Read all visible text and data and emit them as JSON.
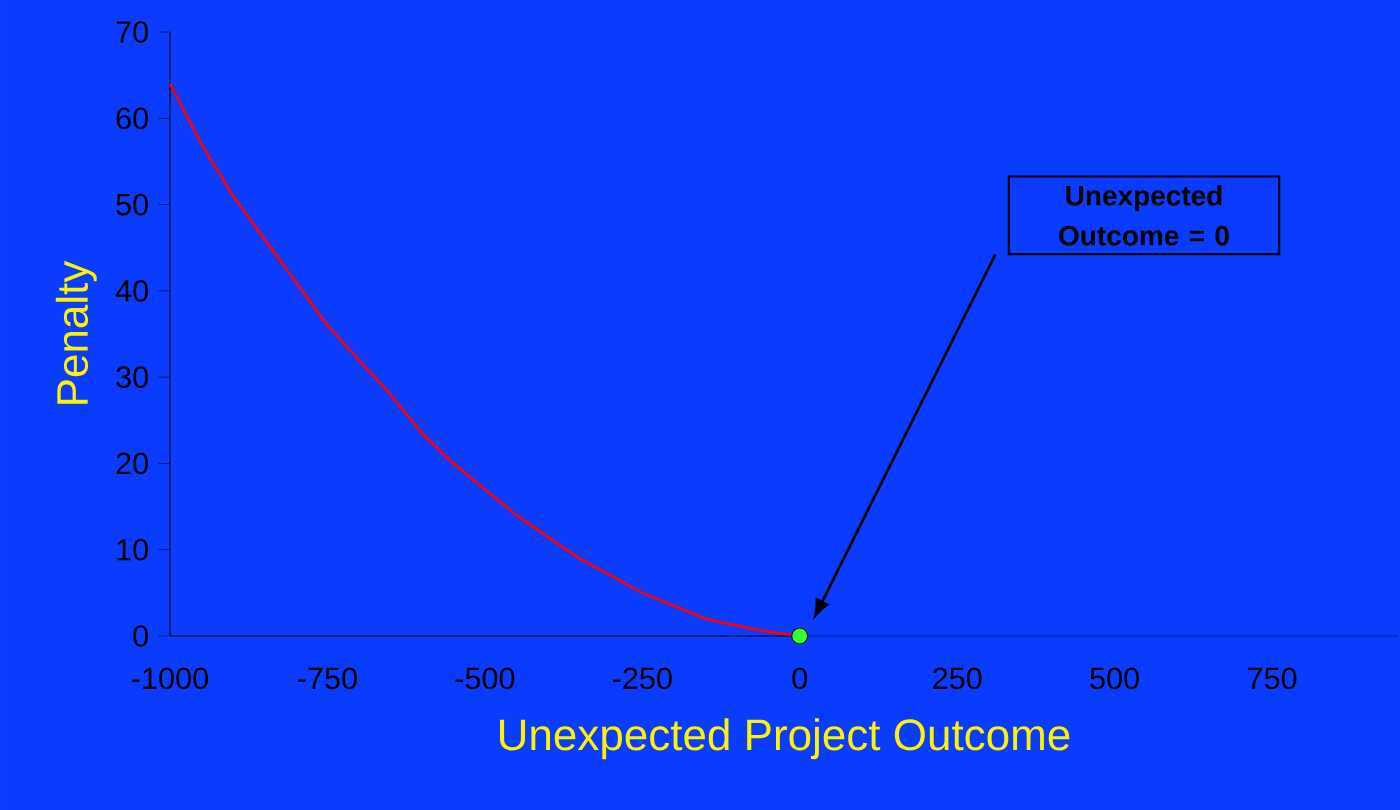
{
  "chart_data": {
    "type": "line",
    "xlabel": "Unexpected Project Outcome",
    "ylabel": "Penalty",
    "xlim": [
      -1000,
      950
    ],
    "ylim": [
      0,
      70
    ],
    "xticks": [
      -1000,
      -750,
      -500,
      -250,
      0,
      250,
      500,
      750
    ],
    "yticks": [
      0,
      10,
      20,
      30,
      40,
      50,
      60,
      70
    ],
    "series": [
      {
        "color": "#ff0000",
        "x": [
          -1000,
          -950,
          -900,
          -850,
          -800,
          -750,
          -700,
          -650,
          -600,
          -550,
          -500,
          -450,
          -400,
          -350,
          -300,
          -250,
          -200,
          -150,
          -100,
          -50,
          0
        ],
        "values": [
          64,
          57,
          51,
          46,
          41,
          36,
          32,
          28,
          23.5,
          20,
          17,
          14,
          11.5,
          9,
          7,
          5,
          3.5,
          2,
          1.2,
          0.5,
          0
        ]
      },
      {
        "color": "#0033cc",
        "x": [
          0,
          950
        ],
        "values": [
          0,
          0
        ]
      },
      {
        "type": "scatter",
        "color": "#33ff33",
        "x": [
          0
        ],
        "values": [
          0
        ]
      }
    ],
    "annotations": [
      "Unexpected Outcome = 0"
    ]
  }
}
